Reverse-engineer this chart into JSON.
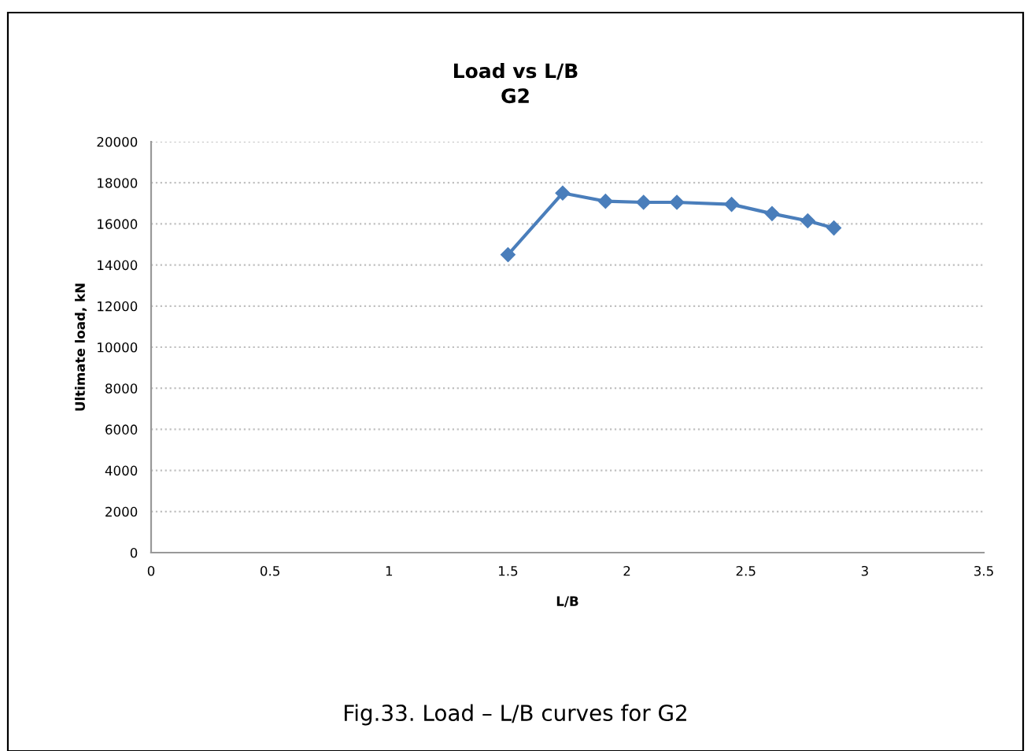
{
  "chart_data": {
    "type": "line",
    "title": "Load vs L/B\nG2",
    "xlabel": "L/B",
    "ylabel": "Ultimate load, kN",
    "x": [
      1.5,
      1.73,
      1.91,
      2.07,
      2.21,
      2.44,
      2.61,
      2.76,
      2.87
    ],
    "series": [
      {
        "color": "#4a7ebb",
        "values": [
          14500,
          17500,
          17100,
          17050,
          17050,
          16950,
          16500,
          16150,
          15800
        ]
      }
    ],
    "xlim": [
      0,
      3.5
    ],
    "xticks": [
      0,
      0.5,
      1,
      1.5,
      2,
      2.5,
      3,
      3.5
    ],
    "ylim": [
      0,
      20000
    ],
    "yticks": [
      0,
      2000,
      4000,
      6000,
      8000,
      10000,
      12000,
      14000,
      16000,
      18000,
      20000
    ],
    "grid": "y",
    "marker": "diamond",
    "line_style": "solid",
    "legend": false,
    "annotations": [
      "Fig.33. Load – L/B curves for G2"
    ]
  }
}
